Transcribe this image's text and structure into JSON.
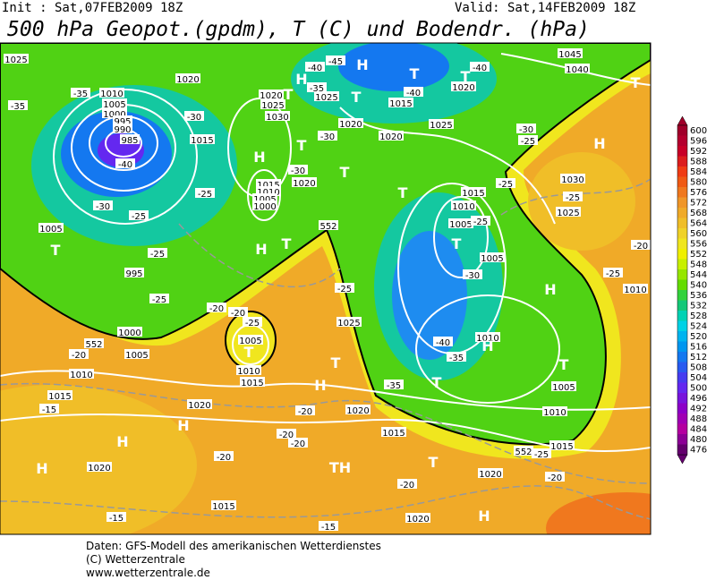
{
  "header": {
    "init": "Init : Sat,07FEB2009 18Z",
    "valid": "Valid: Sat,14FEB2009 18Z",
    "title": "500 hPa Geopot.(gpdm), T (C) und Bodendr. (hPa)"
  },
  "map": {
    "labels": [
      "1025",
      "1020",
      "1010",
      "1005",
      "1000",
      "995",
      "990",
      "985",
      "-40",
      "-35",
      "-35",
      "-30",
      "1015",
      "1020",
      "1025",
      "1030",
      "H",
      "T",
      "-25",
      "1015",
      "1010",
      "1005",
      "1000",
      "H",
      "T",
      "1020",
      "-30",
      "H",
      "H",
      "T",
      "1025",
      "T",
      "1020",
      "-45",
      "-40",
      "-35",
      "1015",
      "-40",
      "T",
      "1020",
      "T",
      "-40",
      "1045",
      "1040",
      "T",
      "-30",
      "-25",
      "-25",
      "H",
      "1030",
      "-25",
      "1025",
      "1025",
      "1020",
      "T",
      "T",
      "-30",
      "1015",
      "1010",
      "1005",
      "-25",
      "T",
      "1005",
      "-30",
      "-25",
      "1025",
      "552",
      "1005",
      "T",
      "1010",
      "1015",
      "-25",
      "-20",
      "-20",
      "T",
      "H",
      "-40",
      "-35",
      "1010",
      "H",
      "T",
      "-35",
      "T",
      "1005",
      "1010",
      "1015",
      "-25",
      "H",
      "1020",
      "-20",
      "1015",
      "-20",
      "-20",
      "TH",
      "T",
      "-20",
      "1020",
      "-20",
      "1020",
      "H",
      "-15",
      "1015",
      "-20",
      "-15",
      "1020",
      "H",
      "H",
      "H",
      "1020",
      "-15",
      "1015",
      "1010",
      "1005",
      "-20",
      "1000",
      "-25",
      "995",
      "-25",
      "-25",
      "-30",
      "1005",
      "T",
      "1010",
      "-20",
      "-25",
      "552",
      "552"
    ]
  },
  "colorbar": {
    "ticks": [
      600,
      596,
      592,
      588,
      584,
      580,
      576,
      572,
      568,
      564,
      560,
      556,
      552,
      548,
      544,
      540,
      536,
      532,
      528,
      524,
      520,
      516,
      512,
      508,
      504,
      500,
      496,
      492,
      488,
      484,
      480,
      476
    ],
    "colors": [
      "#a0002a",
      "#b4002e",
      "#c80028",
      "#dc1e1e",
      "#f03c14",
      "#f05a14",
      "#f0781e",
      "#f09628",
      "#f0aa28",
      "#f0be28",
      "#f0d228",
      "#f0e61e",
      "#f0f000",
      "#c8f000",
      "#96e600",
      "#64dc00",
      "#32d23c",
      "#14c878",
      "#00d2b4",
      "#00d2e6",
      "#00b4f0",
      "#0096f0",
      "#1478f0",
      "#285af0",
      "#463cf0",
      "#6428f0",
      "#7814dc",
      "#8c00c8",
      "#a000b4",
      "#b400a0",
      "#8c0096",
      "#64006e"
    ]
  },
  "footer": {
    "lines": [
      "Daten: GFS-Modell des amerikanischen Wetterdienstes",
      "(C) Wetterzentrale",
      "www.wetterzentrale.de"
    ]
  }
}
